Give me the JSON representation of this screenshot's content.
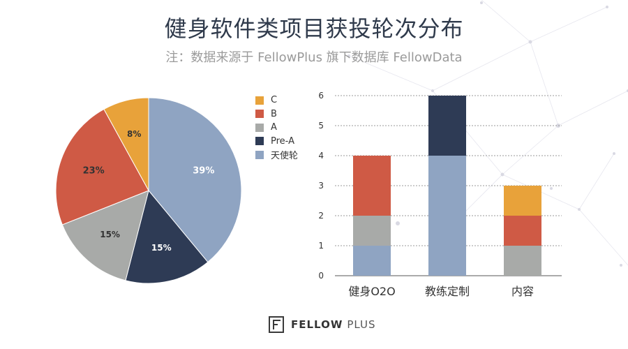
{
  "title": "健身软件类项目获投轮次分布",
  "subtitle": "注：数据来源于 FellowPlus 旗下数据库 FellowData",
  "footer": {
    "brand_bold": "FELLOW",
    "brand_light": "PLUS"
  },
  "colors": {
    "C": "#E8A23A",
    "B": "#CF5A45",
    "A": "#A8AAA8",
    "Pre-A": "#2E3B55",
    "天使轮": "#8FA4C2"
  },
  "chart_data": [
    {
      "type": "pie",
      "labels": [
        "天使轮",
        "Pre-A",
        "A",
        "B",
        "C"
      ],
      "values": [
        39,
        15,
        15,
        23,
        8
      ],
      "value_labels": [
        "39%",
        "15%",
        "15%",
        "23%",
        "8%"
      ],
      "legend": [
        "C",
        "B",
        "A",
        "Pre-A",
        "天使轮"
      ],
      "legend_placement": "right"
    },
    {
      "type": "bar",
      "stacked": true,
      "categories": [
        "健身O2O",
        "教练定制",
        "内容"
      ],
      "series": [
        {
          "name": "天使轮",
          "values": [
            1,
            4,
            0
          ]
        },
        {
          "name": "A",
          "values": [
            1,
            0,
            1
          ]
        },
        {
          "name": "B",
          "values": [
            2,
            0,
            1
          ]
        },
        {
          "name": "C",
          "values": [
            0,
            0,
            1
          ]
        },
        {
          "name": "Pre-A",
          "values": [
            0,
            2,
            0
          ]
        }
      ],
      "ylim": [
        0,
        6
      ],
      "yticks": [
        "0",
        "1",
        "2",
        "3",
        "4",
        "5",
        "6"
      ],
      "grid": true
    }
  ]
}
